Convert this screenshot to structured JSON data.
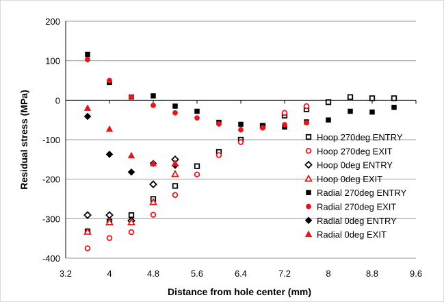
{
  "chart_data": {
    "type": "scatter",
    "xlabel": "Distance from hole center (mm)",
    "ylabel": "Residual stress (MPa)",
    "xlim": [
      3.2,
      9.6
    ],
    "ylim": [
      -400,
      200
    ],
    "xticks": [
      3.2,
      4,
      4.8,
      5.6,
      6.4,
      7.2,
      8,
      8.8,
      9.6
    ],
    "xtick_labels": [
      "3.2",
      "4",
      "4.8",
      "5.6",
      "6.4",
      "7.2",
      "8",
      "8.8",
      "9.6"
    ],
    "yticks": [
      200,
      100,
      0,
      -100,
      -200,
      -300,
      -400
    ],
    "ytick_labels": [
      "200",
      "100",
      "0",
      "-100",
      "-200",
      "-300",
      "-400"
    ],
    "grid": "horizontal",
    "legend_position": "right",
    "series": [
      {
        "name": "Hoop 270deg ENTRY",
        "marker": "square-open",
        "color": "#000000",
        "x": [
          3.6,
          4.0,
          4.4,
          4.8,
          5.2,
          5.6,
          6.0,
          6.4,
          6.8,
          7.2,
          7.6,
          8.0,
          8.4,
          8.8,
          9.2
        ],
        "y": [
          -332,
          -307,
          -291,
          -250,
          -217,
          -167,
          -131,
          -100,
          -65,
          -39,
          -23,
          -5,
          8,
          5,
          5
        ]
      },
      {
        "name": "Hoop 270deg EXIT",
        "marker": "circle-open",
        "color": "#e8161b",
        "x": [
          3.6,
          4.0,
          4.4,
          4.8,
          5.2,
          5.6,
          6.0,
          6.4,
          6.8,
          7.2,
          7.6
        ],
        "y": [
          -375,
          -349,
          -334,
          -290,
          -240,
          -188,
          -139,
          -106,
          -69,
          -32,
          -15
        ]
      },
      {
        "name": "Hoop 0deg ENTRY",
        "marker": "diamond-open",
        "color": "#000000",
        "x": [
          3.6,
          4.0,
          4.4,
          4.8,
          5.2
        ],
        "y": [
          -291,
          -291,
          -305,
          -213,
          -150
        ]
      },
      {
        "name": "Hoop 0deg EXIT",
        "marker": "triangle-open",
        "color": "#e8161b",
        "x": [
          3.6,
          4.0,
          4.4,
          4.8,
          5.2
        ],
        "y": [
          -333,
          -309,
          -309,
          -258,
          -187
        ]
      },
      {
        "name": "Radial 270deg ENTRY",
        "marker": "square",
        "color": "#000000",
        "x": [
          3.6,
          4.0,
          4.4,
          4.8,
          5.2,
          5.6,
          6.0,
          6.4,
          6.8,
          7.2,
          7.6,
          8.0,
          8.4,
          8.8,
          9.2
        ],
        "y": [
          116,
          45,
          8,
          11,
          -15,
          -28,
          -56,
          -61,
          -65,
          -68,
          -55,
          -50,
          -28,
          -30,
          -18
        ]
      },
      {
        "name": "Radial 270deg EXIT",
        "marker": "circle",
        "color": "#e8161b",
        "x": [
          3.6,
          4.0,
          4.4,
          4.8,
          5.2,
          5.6,
          6.0,
          6.4,
          6.8,
          7.2,
          7.6
        ],
        "y": [
          103,
          50,
          8,
          -13,
          -32,
          -45,
          -60,
          -75,
          -70,
          -62,
          -57
        ]
      },
      {
        "name": "Radial 0deg ENTRY",
        "marker": "diamond",
        "color": "#000000",
        "x": [
          3.6,
          4.0,
          4.4,
          4.8,
          5.2
        ],
        "y": [
          -41,
          -137,
          -182,
          -160,
          -165
        ]
      },
      {
        "name": "Radial 0deg EXIT",
        "marker": "triangle",
        "color": "#e8161b",
        "x": [
          3.6,
          4.0,
          4.4,
          4.8,
          5.2
        ],
        "y": [
          -20,
          -73,
          -140,
          -160,
          -160
        ]
      }
    ]
  }
}
